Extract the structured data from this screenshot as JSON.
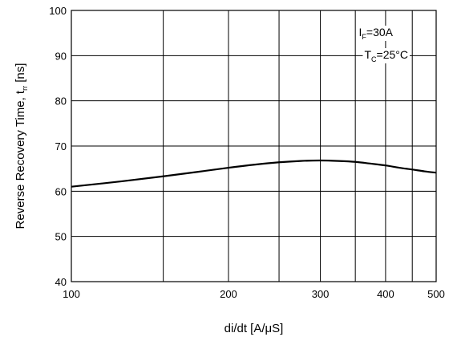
{
  "chart_data": {
    "type": "line",
    "xscale": "log",
    "xlim": [
      100,
      500
    ],
    "ylim": [
      40,
      100
    ],
    "x_ticks": [
      100,
      200,
      300,
      400,
      500
    ],
    "x_tick_labels": [
      "100",
      "200",
      "300",
      "400",
      "500"
    ],
    "x_minor_gridlines": [
      150,
      250,
      350,
      450
    ],
    "y_ticks": [
      40,
      50,
      60,
      70,
      80,
      90,
      100
    ],
    "y_tick_labels": [
      "40",
      "50",
      "60",
      "70",
      "80",
      "90",
      "100"
    ],
    "xlabel": "di/dt [A/μS]",
    "ylabel": {
      "main": "Reverse Recovery Time, t",
      "subscript": "rr",
      "unit": " [ns]"
    },
    "grid": true,
    "annotations": [
      {
        "main": "I",
        "subscript": "F",
        "rest": "=30A"
      },
      {
        "main": "T",
        "subscript": "C",
        "rest": "=25°C"
      }
    ],
    "series": [
      {
        "x": [
          100,
          125,
          150,
          175,
          200,
          225,
          250,
          275,
          300,
          325,
          350,
          375,
          400,
          425,
          450,
          475,
          500
        ],
        "y": [
          61.0,
          62.2,
          63.3,
          64.3,
          65.2,
          65.9,
          66.4,
          66.7,
          66.8,
          66.7,
          66.5,
          66.1,
          65.7,
          65.2,
          64.8,
          64.4,
          64.1
        ]
      }
    ]
  }
}
